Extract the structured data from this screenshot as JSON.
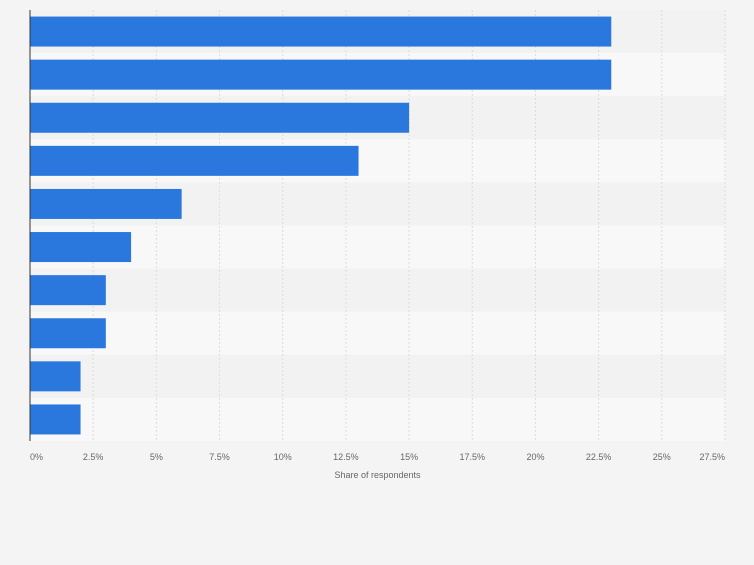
{
  "chart_data": {
    "type": "bar",
    "orientation": "horizontal",
    "categories": [
      "",
      "",
      "",
      "",
      "",
      "",
      "",
      "",
      "",
      ""
    ],
    "values": [
      23,
      23,
      15,
      13,
      6,
      4,
      3,
      3,
      2,
      2
    ],
    "xlabel": "Share of respondents",
    "ylabel": "",
    "xlim": [
      0,
      27.5
    ],
    "ticks": [
      0,
      2.5,
      5,
      7.5,
      10,
      12.5,
      15,
      17.5,
      20,
      22.5,
      25,
      27.5
    ],
    "tick_labels": [
      "0%",
      "2.5%",
      "5%",
      "7.5%",
      "10%",
      "12.5%",
      "15%",
      "17.5%",
      "20%",
      "22.5%",
      "25%",
      "27.5%"
    ],
    "grid": true
  },
  "colors": {
    "bar": "#2a78de",
    "band_dark": "#f2f2f2",
    "band_light": "#f8f8f8",
    "grid": "#dcdcdc",
    "axis": "#333333"
  }
}
